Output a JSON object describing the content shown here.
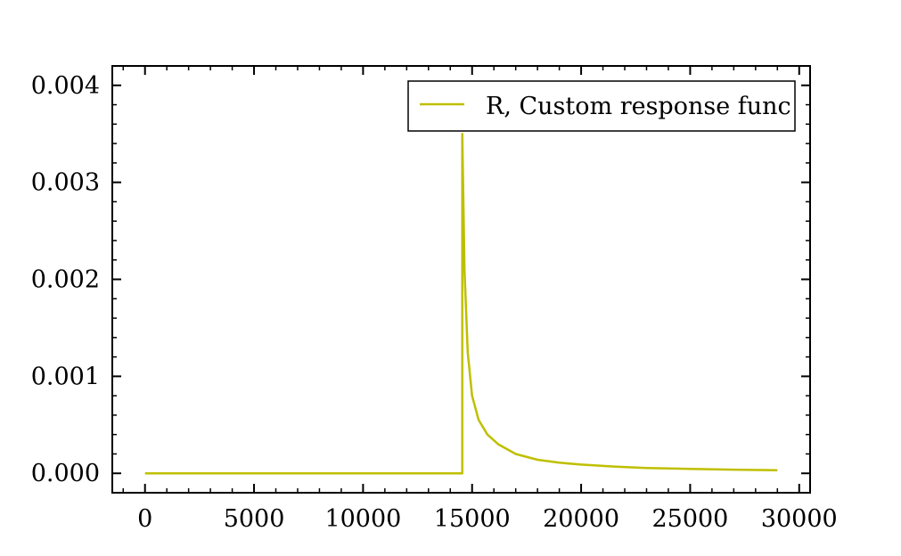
{
  "chart_data": {
    "type": "line",
    "title": "",
    "xlabel": "",
    "ylabel": "",
    "xlim": [
      -1500,
      30500
    ],
    "ylim": [
      -0.0002,
      0.0042
    ],
    "x_ticks": [
      0,
      5000,
      10000,
      15000,
      20000,
      25000,
      30000
    ],
    "x_tick_labels": [
      "0",
      "5000",
      "10000",
      "15000",
      "20000",
      "25000",
      "30000"
    ],
    "y_ticks": [
      0.0,
      0.001,
      0.002,
      0.003,
      0.004
    ],
    "y_tick_labels": [
      "0.000",
      "0.001",
      "0.002",
      "0.003",
      "0.004"
    ],
    "x_minor_step": 1000,
    "y_minor_step": 0.0002,
    "grid": false,
    "legend": {
      "position": "top-right"
    },
    "series": [
      {
        "name": "R, Custom response func",
        "color": "#bfbf00",
        "points": [
          [
            0,
            0
          ],
          [
            14550,
            0
          ],
          [
            14550,
            0.0035
          ],
          [
            14650,
            0.0021
          ],
          [
            14800,
            0.00125
          ],
          [
            15000,
            0.0008
          ],
          [
            15300,
            0.00055
          ],
          [
            15700,
            0.0004
          ],
          [
            16200,
            0.0003
          ],
          [
            17000,
            0.0002
          ],
          [
            18000,
            0.00014
          ],
          [
            19000,
            0.00011
          ],
          [
            20000,
            9e-05
          ],
          [
            21500,
            7e-05
          ],
          [
            23000,
            5.5e-05
          ],
          [
            25000,
            4.5e-05
          ],
          [
            27000,
            3.8e-05
          ],
          [
            29000,
            3.2e-05
          ]
        ]
      }
    ]
  }
}
